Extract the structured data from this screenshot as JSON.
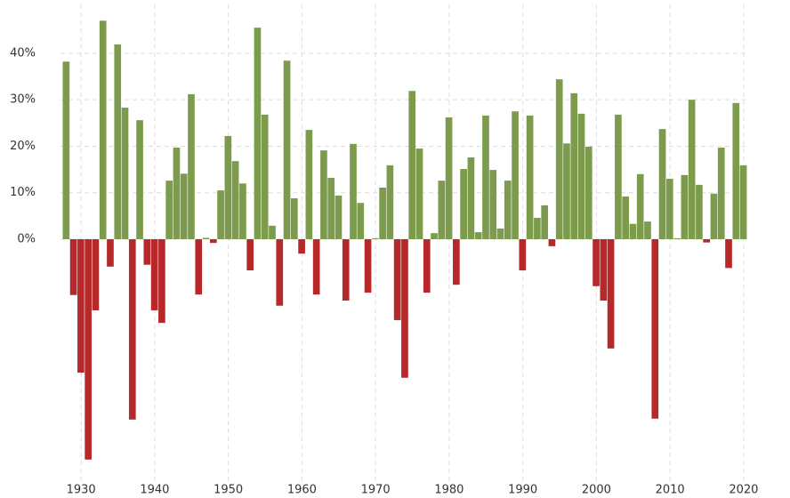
{
  "chart_data": {
    "type": "bar",
    "x": [
      1928,
      1929,
      1930,
      1931,
      1932,
      1933,
      1934,
      1935,
      1936,
      1937,
      1938,
      1939,
      1940,
      1941,
      1942,
      1943,
      1944,
      1945,
      1946,
      1947,
      1948,
      1949,
      1950,
      1951,
      1952,
      1953,
      1954,
      1955,
      1956,
      1957,
      1958,
      1959,
      1960,
      1961,
      1962,
      1963,
      1964,
      1965,
      1966,
      1967,
      1968,
      1969,
      1970,
      1971,
      1972,
      1973,
      1974,
      1975,
      1976,
      1977,
      1978,
      1979,
      1980,
      1981,
      1982,
      1983,
      1984,
      1985,
      1986,
      1987,
      1988,
      1989,
      1990,
      1991,
      1992,
      1993,
      1994,
      1995,
      1996,
      1997,
      1998,
      1999,
      2000,
      2001,
      2002,
      2003,
      2004,
      2005,
      2006,
      2007,
      2008,
      2009,
      2010,
      2011,
      2012,
      2013,
      2014,
      2015,
      2016,
      2017,
      2018,
      2019,
      2020
    ],
    "values": [
      38.2,
      -12.0,
      -28.7,
      -47.4,
      -15.3,
      47.0,
      -5.9,
      41.9,
      28.3,
      -38.8,
      25.6,
      -5.5,
      -15.3,
      -18.0,
      12.6,
      19.7,
      14.1,
      31.2,
      -11.9,
      0.3,
      -0.8,
      10.5,
      22.2,
      16.8,
      12.0,
      -6.7,
      45.5,
      26.8,
      2.9,
      -14.3,
      38.4,
      8.8,
      -3.1,
      23.5,
      -11.9,
      19.1,
      13.2,
      9.4,
      -13.2,
      20.5,
      7.8,
      -11.5,
      0.2,
      11.1,
      15.9,
      -17.4,
      -29.8,
      31.9,
      19.5,
      -11.5,
      1.3,
      12.6,
      26.2,
      -9.8,
      15.1,
      17.6,
      1.5,
      26.6,
      14.9,
      2.3,
      12.6,
      27.5,
      -6.7,
      26.6,
      4.6,
      7.3,
      -1.5,
      34.4,
      20.6,
      31.4,
      27.0,
      19.9,
      -10.1,
      -13.2,
      -23.5,
      26.8,
      9.2,
      3.3,
      14.0,
      3.8,
      -38.6,
      23.7,
      13.0,
      0.2,
      13.8,
      30.0,
      11.7,
      -0.7,
      9.8,
      19.7,
      -6.2,
      29.3,
      15.9
    ],
    "positive_color": "#7d9b4c",
    "negative_color": "#b7282a",
    "xlim": [
      1927.2,
      2020.5
    ],
    "xticks": [
      1930,
      1940,
      1950,
      1960,
      1970,
      1980,
      1990,
      2000,
      2010,
      2020
    ],
    "ylim": [
      -52.8,
      50.5
    ],
    "yticks": [
      {
        "value": 0,
        "label": "0%"
      },
      {
        "value": 10,
        "label": "10%"
      },
      {
        "value": 20,
        "label": "20%"
      },
      {
        "value": 30,
        "label": "30%"
      },
      {
        "value": 40,
        "label": "40%"
      }
    ],
    "grid": true
  }
}
